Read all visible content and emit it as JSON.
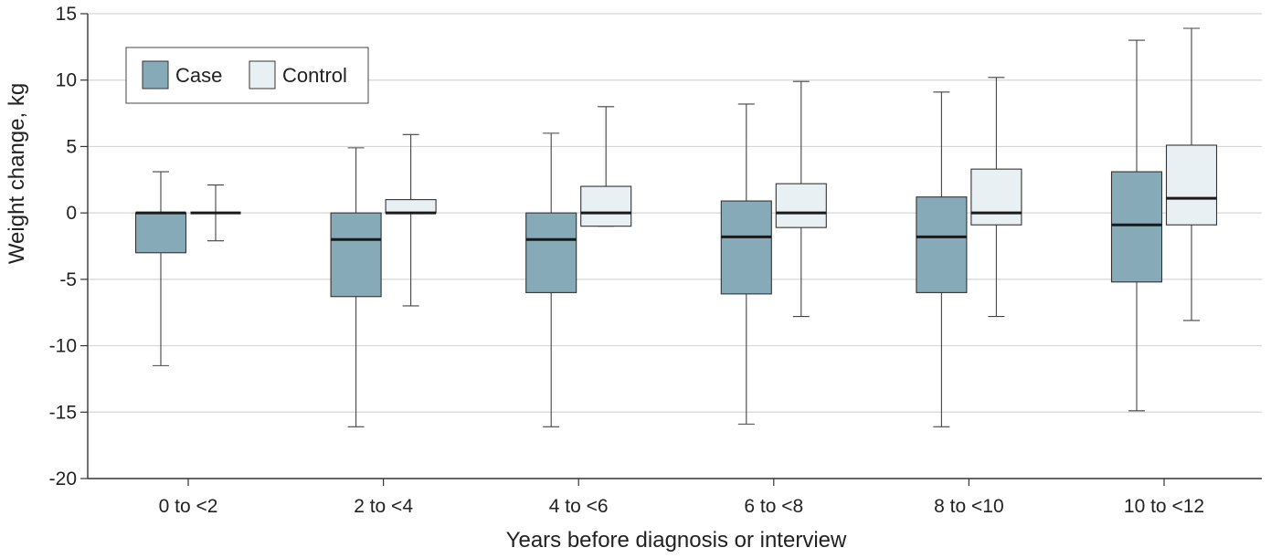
{
  "chart_data": {
    "type": "boxplot",
    "title": "",
    "xlabel": "Years before diagnosis or interview",
    "ylabel": "Weight change, kg",
    "ylim": [
      -20,
      15
    ],
    "yticks": [
      "15",
      "10",
      "5",
      "0",
      "-5",
      "-10",
      "-15",
      "-20"
    ],
    "ytick_values": [
      15,
      10,
      5,
      0,
      -5,
      -10,
      -15,
      -20
    ],
    "grid": "horizontal",
    "legend_position": "top-left",
    "categories": [
      "0 to <2",
      "2 to <4",
      "4 to <6",
      "6 to <8",
      "8 to <10",
      "10 to <12"
    ],
    "series": [
      {
        "name": "Case",
        "color": "#87aab8",
        "boxes": [
          {
            "min": -11.5,
            "q1": -3.0,
            "median": 0.0,
            "q3": 0.0,
            "max": 3.1
          },
          {
            "min": -16.1,
            "q1": -6.3,
            "median": -2.0,
            "q3": 0.0,
            "max": 4.9
          },
          {
            "min": -16.1,
            "q1": -6.0,
            "median": -2.0,
            "q3": 0.0,
            "max": 6.0
          },
          {
            "min": -15.9,
            "q1": -6.1,
            "median": -1.8,
            "q3": 0.9,
            "max": 8.2
          },
          {
            "min": -16.1,
            "q1": -6.0,
            "median": -1.8,
            "q3": 1.2,
            "max": 9.1
          },
          {
            "min": -14.9,
            "q1": -5.2,
            "median": -0.9,
            "q3": 3.1,
            "max": 13.0
          }
        ]
      },
      {
        "name": "Control",
        "color": "#e8f0f4",
        "boxes": [
          {
            "min": -2.1,
            "q1": 0.0,
            "median": 0.0,
            "q3": 0.0,
            "max": 2.1
          },
          {
            "min": -7.0,
            "q1": 0.0,
            "median": 0.0,
            "q3": 1.0,
            "max": 5.9
          },
          {
            "min": -1.0,
            "q1": -1.0,
            "median": 0.0,
            "q3": 2.0,
            "max": 8.0
          },
          {
            "min": -7.8,
            "q1": -1.1,
            "median": 0.0,
            "q3": 2.2,
            "max": 9.9
          },
          {
            "min": -7.8,
            "q1": -0.9,
            "median": 0.0,
            "q3": 3.3,
            "max": 10.2
          },
          {
            "min": -8.1,
            "q1": -0.9,
            "median": 1.1,
            "q3": 5.1,
            "max": 13.9
          }
        ]
      }
    ]
  }
}
